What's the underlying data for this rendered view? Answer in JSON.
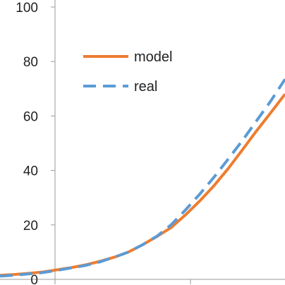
{
  "chart_data": {
    "type": "line",
    "title": "",
    "xlabel": "",
    "ylabel": "",
    "ylim": [
      0,
      100
    ],
    "yticks": [
      0,
      20,
      40,
      60,
      80,
      100
    ],
    "grid": false,
    "legend_position": "top-center",
    "series": [
      {
        "name": "model",
        "color": "#ed7d31",
        "style": "solid",
        "x": [
          0,
          0.05,
          0.1,
          0.15,
          0.2,
          0.25,
          0.3,
          0.35,
          0.4,
          0.45,
          0.5,
          0.55,
          0.6,
          0.65,
          0.7,
          0.75,
          0.8,
          0.85,
          0.9,
          0.95,
          1.0
        ],
        "values": [
          1.5,
          1.8,
          2.2,
          2.7,
          3.5,
          4.3,
          5.3,
          6.6,
          8.1,
          10.0,
          12.7,
          15.7,
          19.0,
          23.6,
          28.7,
          34.3,
          40.6,
          47.5,
          54.5,
          61.2,
          68.0
        ]
      },
      {
        "name": "real",
        "color": "#5b9bd5",
        "style": "dashed",
        "x": [
          0,
          0.05,
          0.1,
          0.15,
          0.2,
          0.25,
          0.3,
          0.35,
          0.4,
          0.45,
          0.5,
          0.55,
          0.6,
          0.65,
          0.7,
          0.75,
          0.8,
          0.85,
          0.9,
          0.95,
          1.0
        ],
        "values": [
          1.2,
          1.5,
          2.0,
          2.5,
          3.3,
          4.2,
          5.1,
          6.4,
          8.1,
          10.0,
          12.7,
          15.8,
          20.0,
          25.4,
          31.2,
          37.4,
          44.1,
          50.9,
          58.2,
          65.5,
          73.5
        ]
      }
    ]
  }
}
